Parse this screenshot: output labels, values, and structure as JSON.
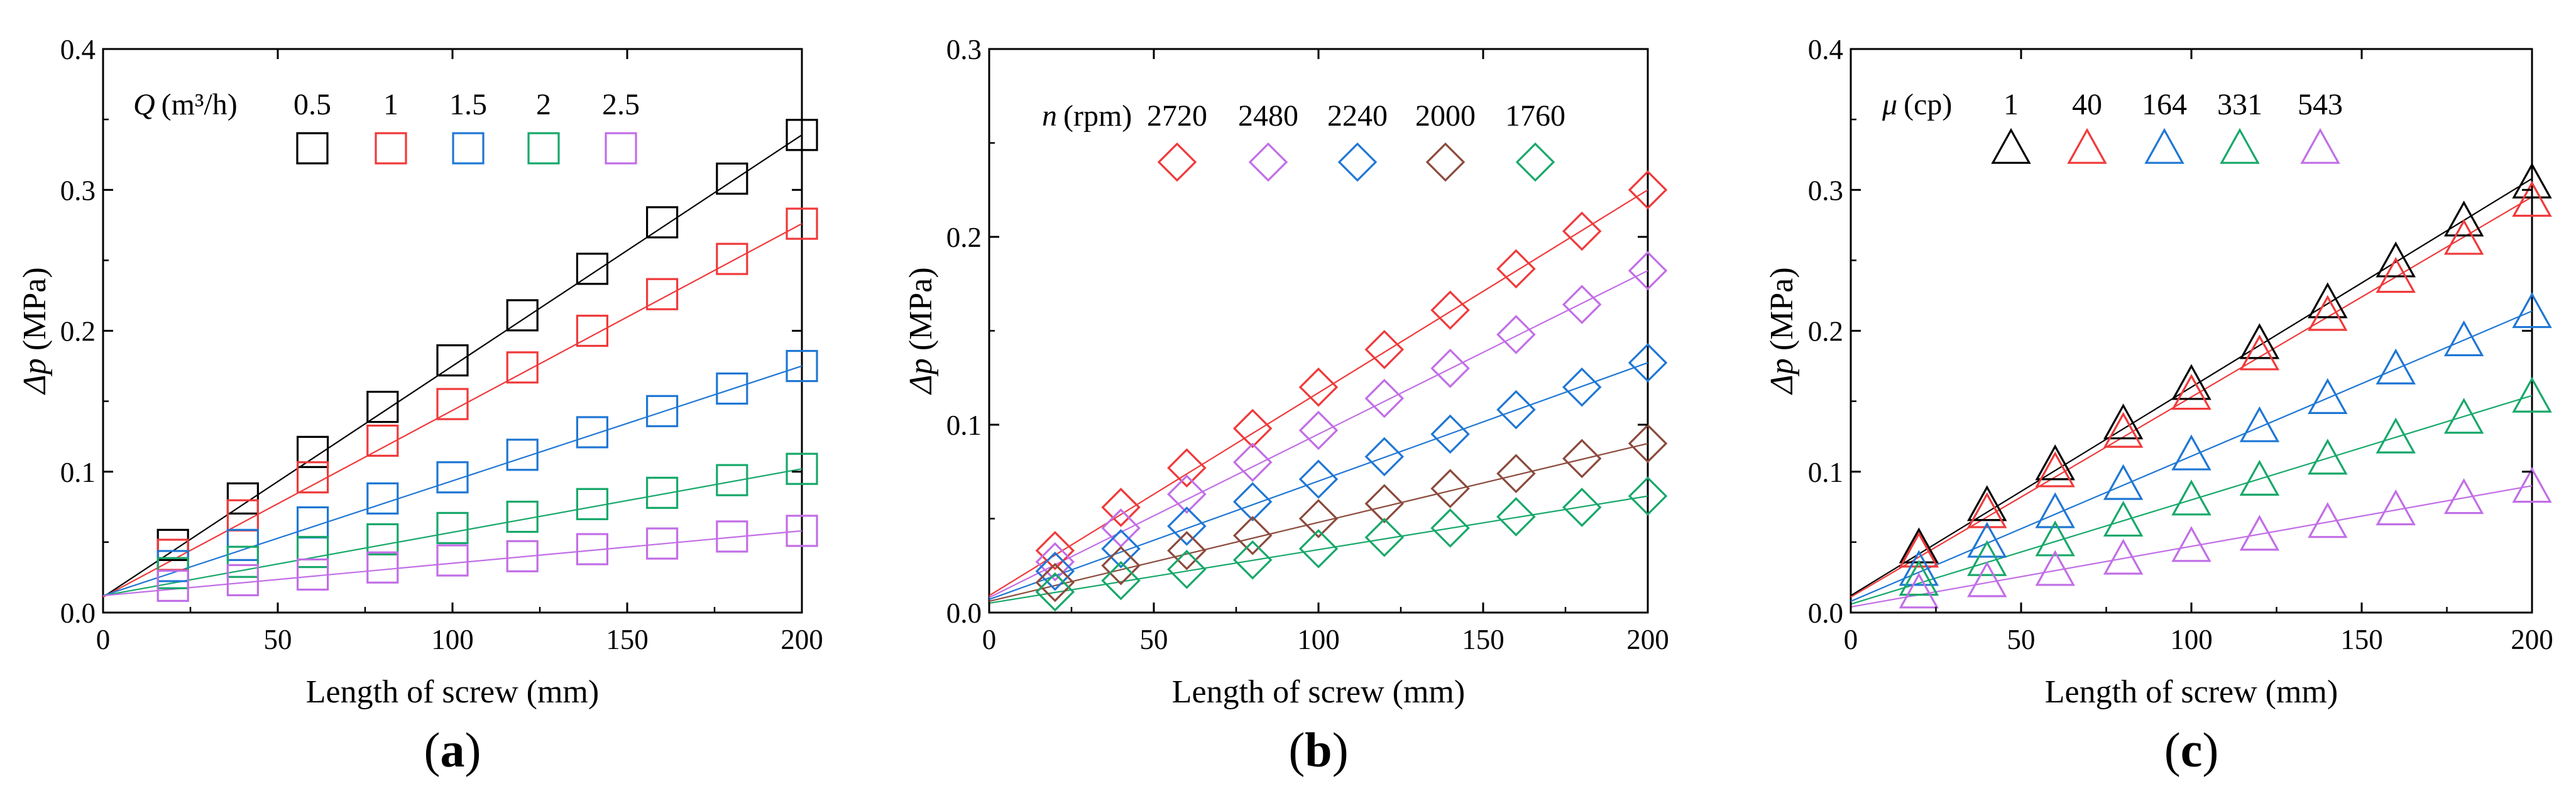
{
  "colors": {
    "black": "#000000",
    "red": "#f0393a",
    "blue": "#1f77d4",
    "green": "#18a86a",
    "purple": "#c26ee6",
    "brown": "#8b4a3c"
  },
  "chart_data": [
    {
      "type": "scatter",
      "panel_label": "(a)",
      "panel_letter": "a",
      "xlabel": "Length of screw (mm)",
      "ylabel": "Δp (MPa)",
      "ylabel_symbol": "Δp",
      "ylabel_unit": "(MPa)",
      "xlim": [
        0,
        200
      ],
      "ylim": [
        0,
        0.4
      ],
      "xticks": [
        0,
        50,
        100,
        150,
        200
      ],
      "xtick_labels": [
        "0",
        "50",
        "100",
        "150",
        "200"
      ],
      "yticks": [
        0.0,
        0.1,
        0.2,
        0.3,
        0.4
      ],
      "ytick_labels": [
        "0.0",
        "0.1",
        "0.2",
        "0.3",
        "0.4"
      ],
      "marker": "square",
      "legend": {
        "title_symbol": "Q",
        "title_unit": "(m³/h)",
        "title": "Q (m³/h)"
      },
      "x": [
        20,
        40,
        60,
        80,
        100,
        120,
        140,
        160,
        180,
        200
      ],
      "series": [
        {
          "name": "0.5",
          "color": "#000000",
          "values": [
            0.048,
            0.081,
            0.114,
            0.146,
            0.179,
            0.211,
            0.244,
            0.277,
            0.308,
            0.339
          ],
          "fit": [
            0.011,
            0.339
          ]
        },
        {
          "name": "1",
          "color": "#f0393a",
          "values": [
            0.041,
            0.069,
            0.096,
            0.122,
            0.148,
            0.174,
            0.2,
            0.226,
            0.251,
            0.276
          ],
          "fit": [
            0.011,
            0.276
          ]
        },
        {
          "name": "1.5",
          "color": "#1f77d4",
          "values": [
            0.033,
            0.048,
            0.064,
            0.081,
            0.096,
            0.112,
            0.128,
            0.143,
            0.159,
            0.175
          ],
          "fit": [
            0.012,
            0.175
          ]
        },
        {
          "name": "2",
          "color": "#18a86a",
          "values": [
            0.028,
            0.036,
            0.043,
            0.052,
            0.06,
            0.068,
            0.077,
            0.085,
            0.094,
            0.102
          ],
          "fit": [
            0.012,
            0.102
          ]
        },
        {
          "name": "2.5",
          "color": "#c26ee6",
          "values": [
            0.019,
            0.023,
            0.027,
            0.032,
            0.037,
            0.04,
            0.045,
            0.049,
            0.054,
            0.058
          ],
          "fit": [
            0.012,
            0.058
          ]
        }
      ]
    },
    {
      "type": "scatter",
      "panel_label": "(b)",
      "panel_letter": "b",
      "xlabel": "Length of screw (mm)",
      "ylabel": "Δp (MPa)",
      "ylabel_symbol": "Δp",
      "ylabel_unit": "(MPa)",
      "xlim": [
        0,
        200
      ],
      "ylim": [
        0,
        0.3
      ],
      "xticks": [
        0,
        50,
        100,
        150,
        200
      ],
      "xtick_labels": [
        "0",
        "50",
        "100",
        "150",
        "200"
      ],
      "yticks": [
        0.0,
        0.1,
        0.2,
        0.3
      ],
      "ytick_labels": [
        "0.0",
        "0.1",
        "0.2",
        "0.3"
      ],
      "marker": "diamond",
      "legend": {
        "title_symbol": "n",
        "title_unit": "(rpm)",
        "title": "n (rpm)"
      },
      "x": [
        20,
        40,
        60,
        80,
        100,
        120,
        140,
        160,
        180,
        200
      ],
      "series": [
        {
          "name": "2720",
          "color": "#f0393a",
          "values": [
            0.033,
            0.056,
            0.077,
            0.098,
            0.12,
            0.14,
            0.161,
            0.183,
            0.203,
            0.225
          ],
          "fit": [
            0.009,
            0.225
          ]
        },
        {
          "name": "2480",
          "color": "#c26ee6",
          "values": [
            0.027,
            0.045,
            0.063,
            0.08,
            0.097,
            0.114,
            0.13,
            0.148,
            0.164,
            0.182
          ],
          "fit": [
            0.008,
            0.182
          ]
        },
        {
          "name": "2240",
          "color": "#1f77d4",
          "values": [
            0.022,
            0.034,
            0.046,
            0.059,
            0.071,
            0.083,
            0.095,
            0.108,
            0.12,
            0.133
          ],
          "fit": [
            0.007,
            0.133
          ]
        },
        {
          "name": "2000",
          "color": "#8b4a3c",
          "values": [
            0.016,
            0.025,
            0.033,
            0.041,
            0.05,
            0.058,
            0.066,
            0.074,
            0.082,
            0.09
          ],
          "fit": [
            0.006,
            0.09
          ]
        },
        {
          "name": "1760",
          "color": "#18a86a",
          "values": [
            0.011,
            0.017,
            0.023,
            0.028,
            0.034,
            0.04,
            0.045,
            0.051,
            0.056,
            0.062
          ],
          "fit": [
            0.005,
            0.062
          ]
        }
      ]
    },
    {
      "type": "scatter",
      "panel_label": "(c)",
      "panel_letter": "c",
      "xlabel": "Length of screw (mm)",
      "ylabel": "Δp (MPa)",
      "ylabel_symbol": "Δp",
      "ylabel_unit": "(MPa)",
      "xlim": [
        0,
        200
      ],
      "ylim": [
        0,
        0.4
      ],
      "xticks": [
        0,
        50,
        100,
        150,
        200
      ],
      "xtick_labels": [
        "0",
        "50",
        "100",
        "150",
        "200"
      ],
      "yticks": [
        0.0,
        0.1,
        0.2,
        0.3,
        0.4
      ],
      "ytick_labels": [
        "0.0",
        "0.1",
        "0.2",
        "0.3",
        "0.4"
      ],
      "marker": "triangle",
      "legend": {
        "title_symbol": "μ",
        "title_unit": "(cp)",
        "title": "μ (cp)"
      },
      "x": [
        20,
        40,
        60,
        80,
        100,
        120,
        140,
        160,
        180,
        200
      ],
      "series": [
        {
          "name": "1",
          "color": "#000000",
          "values": [
            0.046,
            0.076,
            0.105,
            0.134,
            0.162,
            0.191,
            0.22,
            0.249,
            0.278,
            0.305
          ],
          "fit": [
            0.012,
            0.308
          ]
        },
        {
          "name": "40",
          "color": "#f0393a",
          "values": [
            0.043,
            0.071,
            0.1,
            0.128,
            0.155,
            0.183,
            0.211,
            0.238,
            0.265,
            0.292
          ],
          "fit": [
            0.011,
            0.295
          ]
        },
        {
          "name": "164",
          "color": "#1f77d4",
          "values": [
            0.03,
            0.05,
            0.071,
            0.091,
            0.112,
            0.132,
            0.152,
            0.173,
            0.193,
            0.213
          ],
          "fit": [
            0.008,
            0.214
          ]
        },
        {
          "name": "331",
          "color": "#18a86a",
          "values": [
            0.023,
            0.037,
            0.051,
            0.065,
            0.08,
            0.094,
            0.109,
            0.124,
            0.138,
            0.153
          ],
          "fit": [
            0.006,
            0.154
          ]
        },
        {
          "name": "543",
          "color": "#c26ee6",
          "values": [
            0.014,
            0.022,
            0.03,
            0.038,
            0.047,
            0.055,
            0.064,
            0.073,
            0.081,
            0.089
          ],
          "fit": [
            0.004,
            0.09
          ]
        }
      ]
    }
  ]
}
